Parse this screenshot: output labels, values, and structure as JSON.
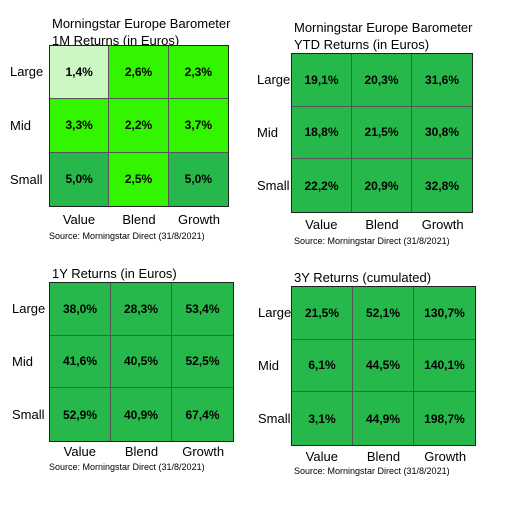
{
  "colors": {
    "light": "#cbf7c3",
    "bright": "#33f500",
    "medium": "#26b84a",
    "border": "#222222"
  },
  "chart_data": [
    {
      "type": "heatmap",
      "title": "Morningstar Europe Barometer",
      "subtitle": "1M Returns (in Euros)",
      "rows": [
        "Large",
        "Mid",
        "Small"
      ],
      "columns": [
        "Value",
        "Blend",
        "Growth"
      ],
      "values": [
        [
          "1,4%",
          "2,6%",
          "2,3%"
        ],
        [
          "3,3%",
          "2,2%",
          "3,7%"
        ],
        [
          "5,0%",
          "2,5%",
          "5,0%"
        ]
      ],
      "cell_colors": [
        [
          "#cbf7c3",
          "#33f500",
          "#33f500"
        ],
        [
          "#33f500",
          "#33f500",
          "#33f500"
        ],
        [
          "#26b84a",
          "#33f500",
          "#26b84a"
        ]
      ],
      "source": "Source: Morningstar Direct (31/8/2021)"
    },
    {
      "type": "heatmap",
      "title": "Morningstar Europe Barometer",
      "subtitle": "YTD Returns (in Euros)",
      "rows": [
        "Large",
        "Mid",
        "Small"
      ],
      "columns": [
        "Value",
        "Blend",
        "Growth"
      ],
      "values": [
        [
          "19,1%",
          "20,3%",
          "31,6%"
        ],
        [
          "18,8%",
          "21,5%",
          "30,8%"
        ],
        [
          "22,2%",
          "20,9%",
          "32,8%"
        ]
      ],
      "cell_colors": [
        [
          "#26b84a",
          "#26b84a",
          "#26b84a"
        ],
        [
          "#26b84a",
          "#26b84a",
          "#26b84a"
        ],
        [
          "#26b84a",
          "#26b84a",
          "#26b84a"
        ]
      ],
      "source": "Source: Morningstar Direct (31/8/2021)"
    },
    {
      "type": "heatmap",
      "title": "",
      "subtitle": "1Y Returns (in Euros)",
      "rows": [
        "Large",
        "Mid",
        "Small"
      ],
      "columns": [
        "Value",
        "Blend",
        "Growth"
      ],
      "values": [
        [
          "38,0%",
          "28,3%",
          "53,4%"
        ],
        [
          "41,6%",
          "40,5%",
          "52,5%"
        ],
        [
          "52,9%",
          "40,9%",
          "67,4%"
        ]
      ],
      "cell_colors": [
        [
          "#26b84a",
          "#26b84a",
          "#26b84a"
        ],
        [
          "#26b84a",
          "#26b84a",
          "#26b84a"
        ],
        [
          "#26b84a",
          "#26b84a",
          "#26b84a"
        ]
      ],
      "source": "Source: Morningstar Direct (31/8/2021)"
    },
    {
      "type": "heatmap",
      "title": "",
      "subtitle": "3Y Returns (cumulated)",
      "rows": [
        "Large",
        "Mid",
        "Small"
      ],
      "columns": [
        "Value",
        "Blend",
        "Growth"
      ],
      "values": [
        [
          "21,5%",
          "52,1%",
          "130,7%"
        ],
        [
          "6,1%",
          "44,5%",
          "140,1%"
        ],
        [
          "3,1%",
          "44,9%",
          "198,7%"
        ]
      ],
      "cell_colors": [
        [
          "#26b84a",
          "#26b84a",
          "#26b84a"
        ],
        [
          "#26b84a",
          "#26b84a",
          "#26b84a"
        ],
        [
          "#26b84a",
          "#26b84a",
          "#26b84a"
        ]
      ],
      "source": "Source: Morningstar Direct (31/8/2021)"
    }
  ]
}
